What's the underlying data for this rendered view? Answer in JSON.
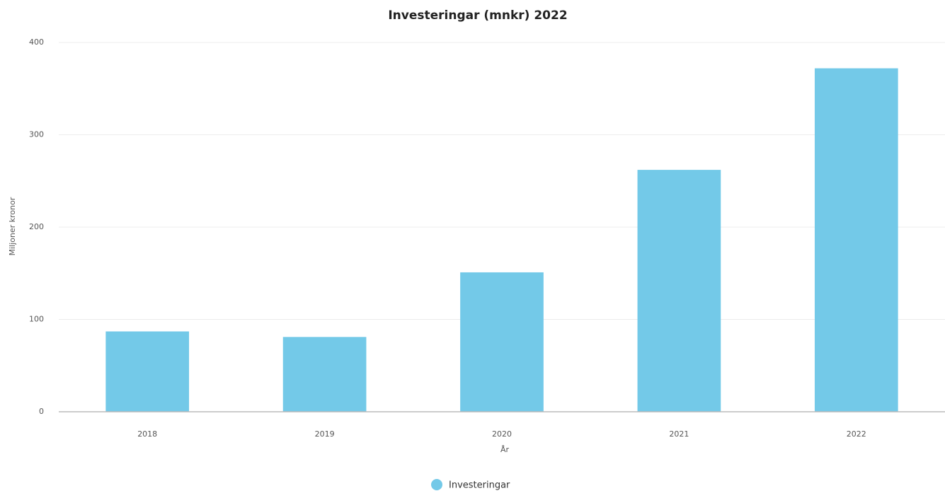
{
  "chart_data": {
    "type": "bar",
    "title": "Investeringar (mnkr) 2022",
    "x_label": "År",
    "y_label": "Miljoner kronor",
    "categories": [
      "2018",
      "2019",
      "2020",
      "2021",
      "2022"
    ],
    "series": [
      {
        "name": "Investeringar",
        "color": "#73c9e8",
        "values": [
          87,
          81,
          151,
          262,
          372
        ]
      }
    ],
    "ylim": [
      0,
      400
    ],
    "yticks": [
      0,
      100,
      200,
      300,
      400
    ],
    "grid": true,
    "legend": "bottom"
  }
}
